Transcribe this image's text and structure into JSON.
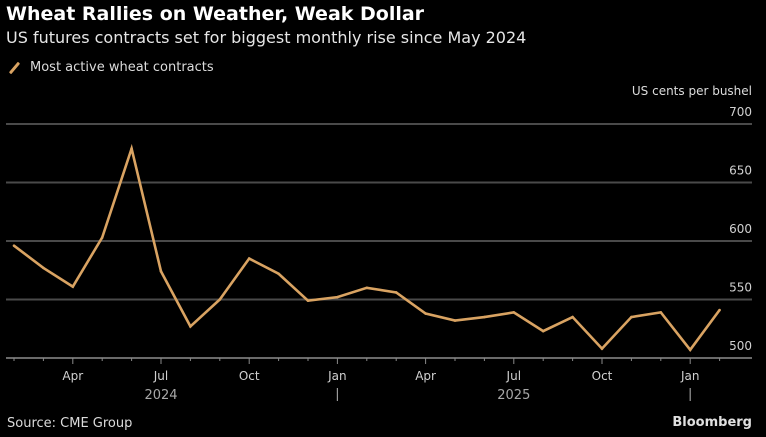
{
  "header": {
    "title": "Wheat Rallies on Weather, Weak Dollar",
    "subtitle": "US futures contracts set for biggest monthly rise since May 2024"
  },
  "footer": {
    "source": "Source: CME Group",
    "brand": "Bloomberg"
  },
  "chart_data": {
    "type": "line",
    "title": "Wheat Rallies on Weather, Weak Dollar",
    "subtitle": "US futures contracts set for biggest monthly rise since May 2024",
    "xlabel": "",
    "ylabel": "US cents per bushel",
    "ylim": [
      500,
      700
    ],
    "yticks": [
      700,
      650,
      600,
      550,
      500
    ],
    "grid": true,
    "legend_position": "top-left",
    "x": [
      "Feb 2024",
      "Mar 2024",
      "Apr 2024",
      "May 2024",
      "Jun 2024",
      "Jul 2024",
      "Aug 2024",
      "Sep 2024",
      "Oct 2024",
      "Nov 2024",
      "Dec 2024",
      "Jan 2025",
      "Feb 2025",
      "Mar 2025",
      "Apr 2025",
      "May 2025",
      "Jun 2025",
      "Jul 2025",
      "Aug 2025",
      "Sep 2025",
      "Oct 2025",
      "Nov 2025",
      "Dec 2025",
      "Jan 2026",
      "Feb 2026"
    ],
    "xticks": [
      {
        "index": 2,
        "label": "Apr"
      },
      {
        "index": 5,
        "label": "Jul"
      },
      {
        "index": 8,
        "label": "Oct"
      },
      {
        "index": 11,
        "label": "Jan"
      },
      {
        "index": 14,
        "label": "Apr"
      },
      {
        "index": 17,
        "label": "Jul"
      },
      {
        "index": 20,
        "label": "Oct"
      },
      {
        "index": 23,
        "label": "Jan"
      }
    ],
    "year_labels": [
      {
        "index": 5,
        "label": "2024"
      },
      {
        "index": 17,
        "label": "2025"
      }
    ],
    "year_dividers": [
      11,
      23
    ],
    "series": [
      {
        "name": "Most active wheat contracts",
        "color": "#d9a362",
        "values": [
          596,
          577,
          561,
          603,
          679,
          574,
          527,
          550,
          585,
          572,
          549,
          552,
          560,
          556,
          538,
          532,
          535,
          539,
          523,
          535,
          508,
          535,
          539,
          507,
          541
        ]
      }
    ]
  }
}
